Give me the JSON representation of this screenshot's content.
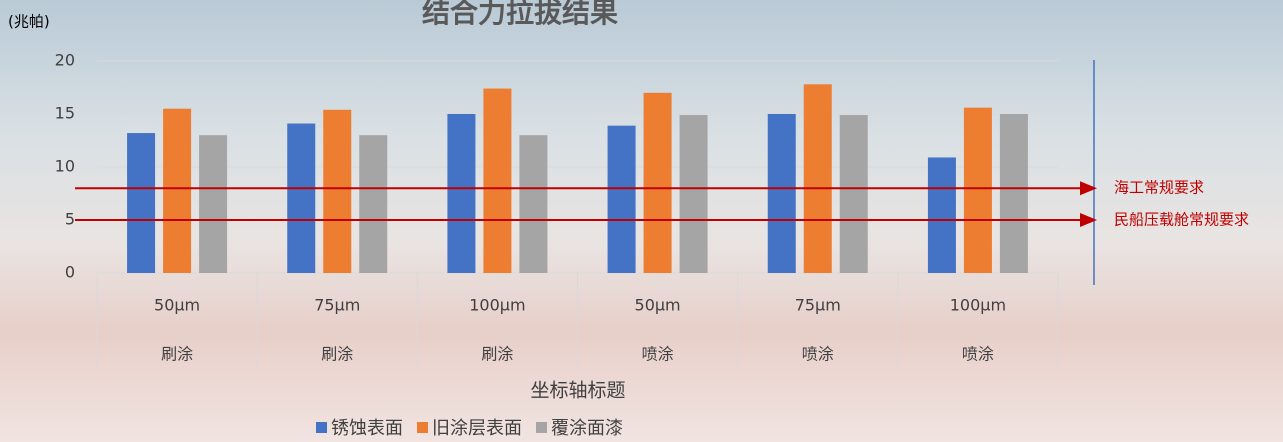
{
  "chart_data": {
    "type": "bar",
    "title": "结合力拉拔结果",
    "y_label": "(兆帕)",
    "x_label": "坐标轴标题",
    "categories": [
      "50μm",
      "75μm",
      "100μm",
      "50μm",
      "75μm",
      "100μm"
    ],
    "category_groups": [
      "刷涂",
      "刷涂",
      "刷涂",
      "喷涂",
      "喷涂",
      "喷涂"
    ],
    "series": [
      {
        "name": "锈蚀表面",
        "color": "#4472c4",
        "values": [
          13.2,
          14.1,
          15,
          13.9,
          15,
          10.9
        ]
      },
      {
        "name": "旧涂层表面",
        "color": "#ed7d31",
        "values": [
          15.5,
          15.4,
          17.4,
          17,
          17.8,
          15.6
        ]
      },
      {
        "name": "覆涂面漆",
        "color": "#a5a5a5",
        "values": [
          13,
          13,
          13,
          14.9,
          14.9,
          15
        ]
      }
    ],
    "reference_lines": [
      {
        "value": 8,
        "label": "海工常规要求",
        "color": "#c00000"
      },
      {
        "value": 5,
        "label": "民船压载舱常规要求",
        "color": "#c00000"
      }
    ],
    "ylim": [
      0,
      20
    ],
    "yticks": [
      0,
      5,
      10,
      15,
      20
    ],
    "grid": true
  }
}
